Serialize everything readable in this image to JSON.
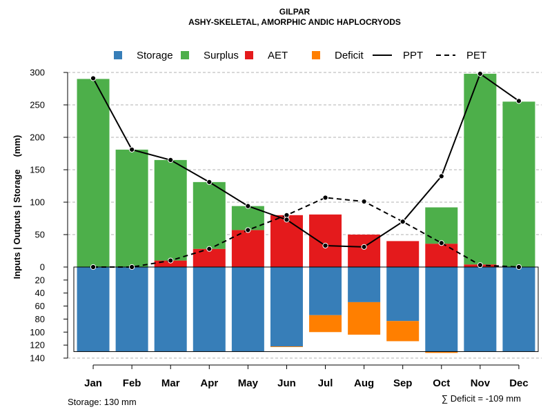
{
  "chart_data": {
    "type": "bar",
    "title": "GILPAR",
    "subtitle": "ASHY-SKELETAL, AMORPHIC ANDIC HAPLOCRYODS",
    "ylabel": "Inputs | Outputs | Storage     (mm)",
    "categories": [
      "Jan",
      "Feb",
      "Mar",
      "Apr",
      "May",
      "Jun",
      "Jul",
      "Aug",
      "Sep",
      "Oct",
      "Nov",
      "Dec"
    ],
    "ylim_top": [
      0,
      300
    ],
    "ylim_bottom": [
      0,
      140
    ],
    "yticks_top": [
      "0",
      "50",
      "100",
      "150",
      "200",
      "250",
      "300"
    ],
    "yticks_bottom": [
      "20",
      "40",
      "60",
      "80",
      "100",
      "120",
      "140"
    ],
    "legend": [
      {
        "label": "Storage",
        "kind": "box",
        "color": "#377eb8"
      },
      {
        "label": "Surplus",
        "kind": "box",
        "color": "#4daf4a"
      },
      {
        "label": "AET",
        "kind": "box",
        "color": "#e41a1c"
      },
      {
        "label": "Deficit",
        "kind": "box",
        "color": "#ff7f00"
      },
      {
        "label": "PPT",
        "kind": "solid",
        "color": "#000000"
      },
      {
        "label": "PET",
        "kind": "dashed",
        "color": "#000000"
      }
    ],
    "series": [
      {
        "name": "AET",
        "color": "#e41a1c",
        "values": [
          0,
          0,
          10,
          28,
          57,
          80,
          81,
          50,
          40,
          36,
          4,
          0
        ]
      },
      {
        "name": "Surplus",
        "color": "#4daf4a",
        "values": [
          290,
          181,
          155,
          103,
          37,
          0,
          0,
          0,
          0,
          56,
          294,
          255
        ]
      },
      {
        "name": "Storage",
        "color": "#377eb8",
        "values": [
          130,
          130,
          130,
          130,
          130,
          122,
          74,
          54,
          83,
          130,
          130,
          130
        ]
      },
      {
        "name": "Deficit",
        "color": "#ff7f00",
        "values": [
          0,
          0,
          0,
          0,
          0,
          1,
          26,
          50,
          31,
          2,
          0,
          0
        ]
      },
      {
        "name": "PPT",
        "color": "#000000",
        "values": [
          291,
          181,
          165,
          131,
          94,
          73,
          33,
          31,
          70,
          140,
          298,
          256
        ]
      },
      {
        "name": "PET",
        "color": "#000000",
        "values": [
          0,
          0,
          10,
          28,
          57,
          80,
          107,
          101,
          70,
          37,
          3,
          0
        ]
      }
    ],
    "storage_capacity": 130,
    "footnote_storage": "Storage: 130 mm",
    "footnote_deficit": "∑ Deficit = -109 mm"
  }
}
